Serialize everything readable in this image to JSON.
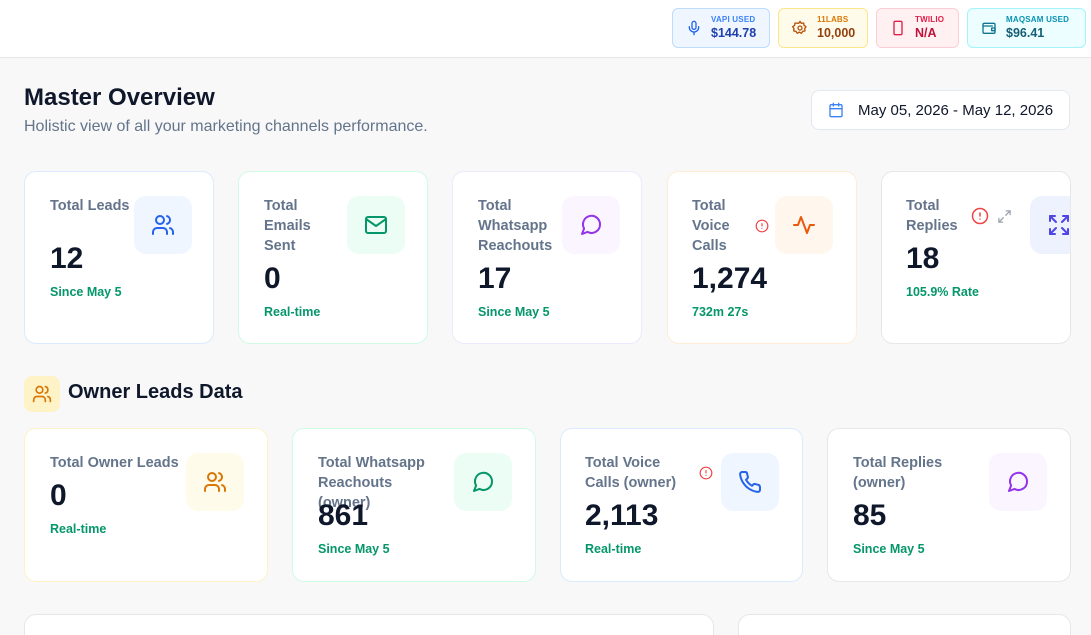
{
  "usage": [
    {
      "label": "VAPI USED",
      "value": "$144.78",
      "icon": "microphone-icon"
    },
    {
      "label": "11LABS",
      "value": "10,000",
      "icon": "gear-icon"
    },
    {
      "label": "TWILIO",
      "value": "N/A",
      "icon": "phone-device-icon"
    },
    {
      "label": "MAQSAM USED",
      "value": "$96.41",
      "icon": "wallet-icon"
    }
  ],
  "header": {
    "title": "Master Overview",
    "subtitle": "Holistic view of all your marketing channels performance.",
    "date_range": "May 05, 2026 - May 12, 2026"
  },
  "overview_cards": [
    {
      "label": "Total Leads",
      "value": "12",
      "sub": "Since May 5",
      "icon": "users-icon"
    },
    {
      "label": "Total Emails Sent",
      "value": "0",
      "sub": "Real-time",
      "icon": "mail-icon"
    },
    {
      "label": "Total Whatsapp Reachouts",
      "value": "17",
      "sub": "Since May 5",
      "icon": "chat-bubble-icon"
    },
    {
      "label": "Total Voice Calls",
      "value": "1,274",
      "sub": "732m 27s",
      "icon": "activity-icon"
    },
    {
      "label": "Total Replies",
      "value": "18",
      "sub": "105.9% Rate",
      "icon": "expand-icon"
    }
  ],
  "owner_section": {
    "title": "Owner Leads Data"
  },
  "owner_cards": [
    {
      "label": "Total Owner Leads",
      "value": "0",
      "sub": "Real-time",
      "icon": "users-icon"
    },
    {
      "label": "Total Whatsapp Reachouts (owner)",
      "value": "861",
      "sub": "Since May 5",
      "icon": "whatsapp-icon"
    },
    {
      "label": "Total Voice Calls (owner)",
      "value": "2,113",
      "sub": "Real-time",
      "icon": "phone-icon"
    },
    {
      "label": "Total Replies (owner)",
      "value": "85",
      "sub": "Since May 5",
      "icon": "chat-bubble-icon"
    }
  ],
  "colors": {
    "accent_green": "#059669",
    "blue": "#3b82f6",
    "green": "#10b981",
    "purple": "#9333ea",
    "orange": "#ea580c",
    "amber": "#d97706",
    "indigo": "#4f46e5",
    "red": "#ef4444"
  }
}
